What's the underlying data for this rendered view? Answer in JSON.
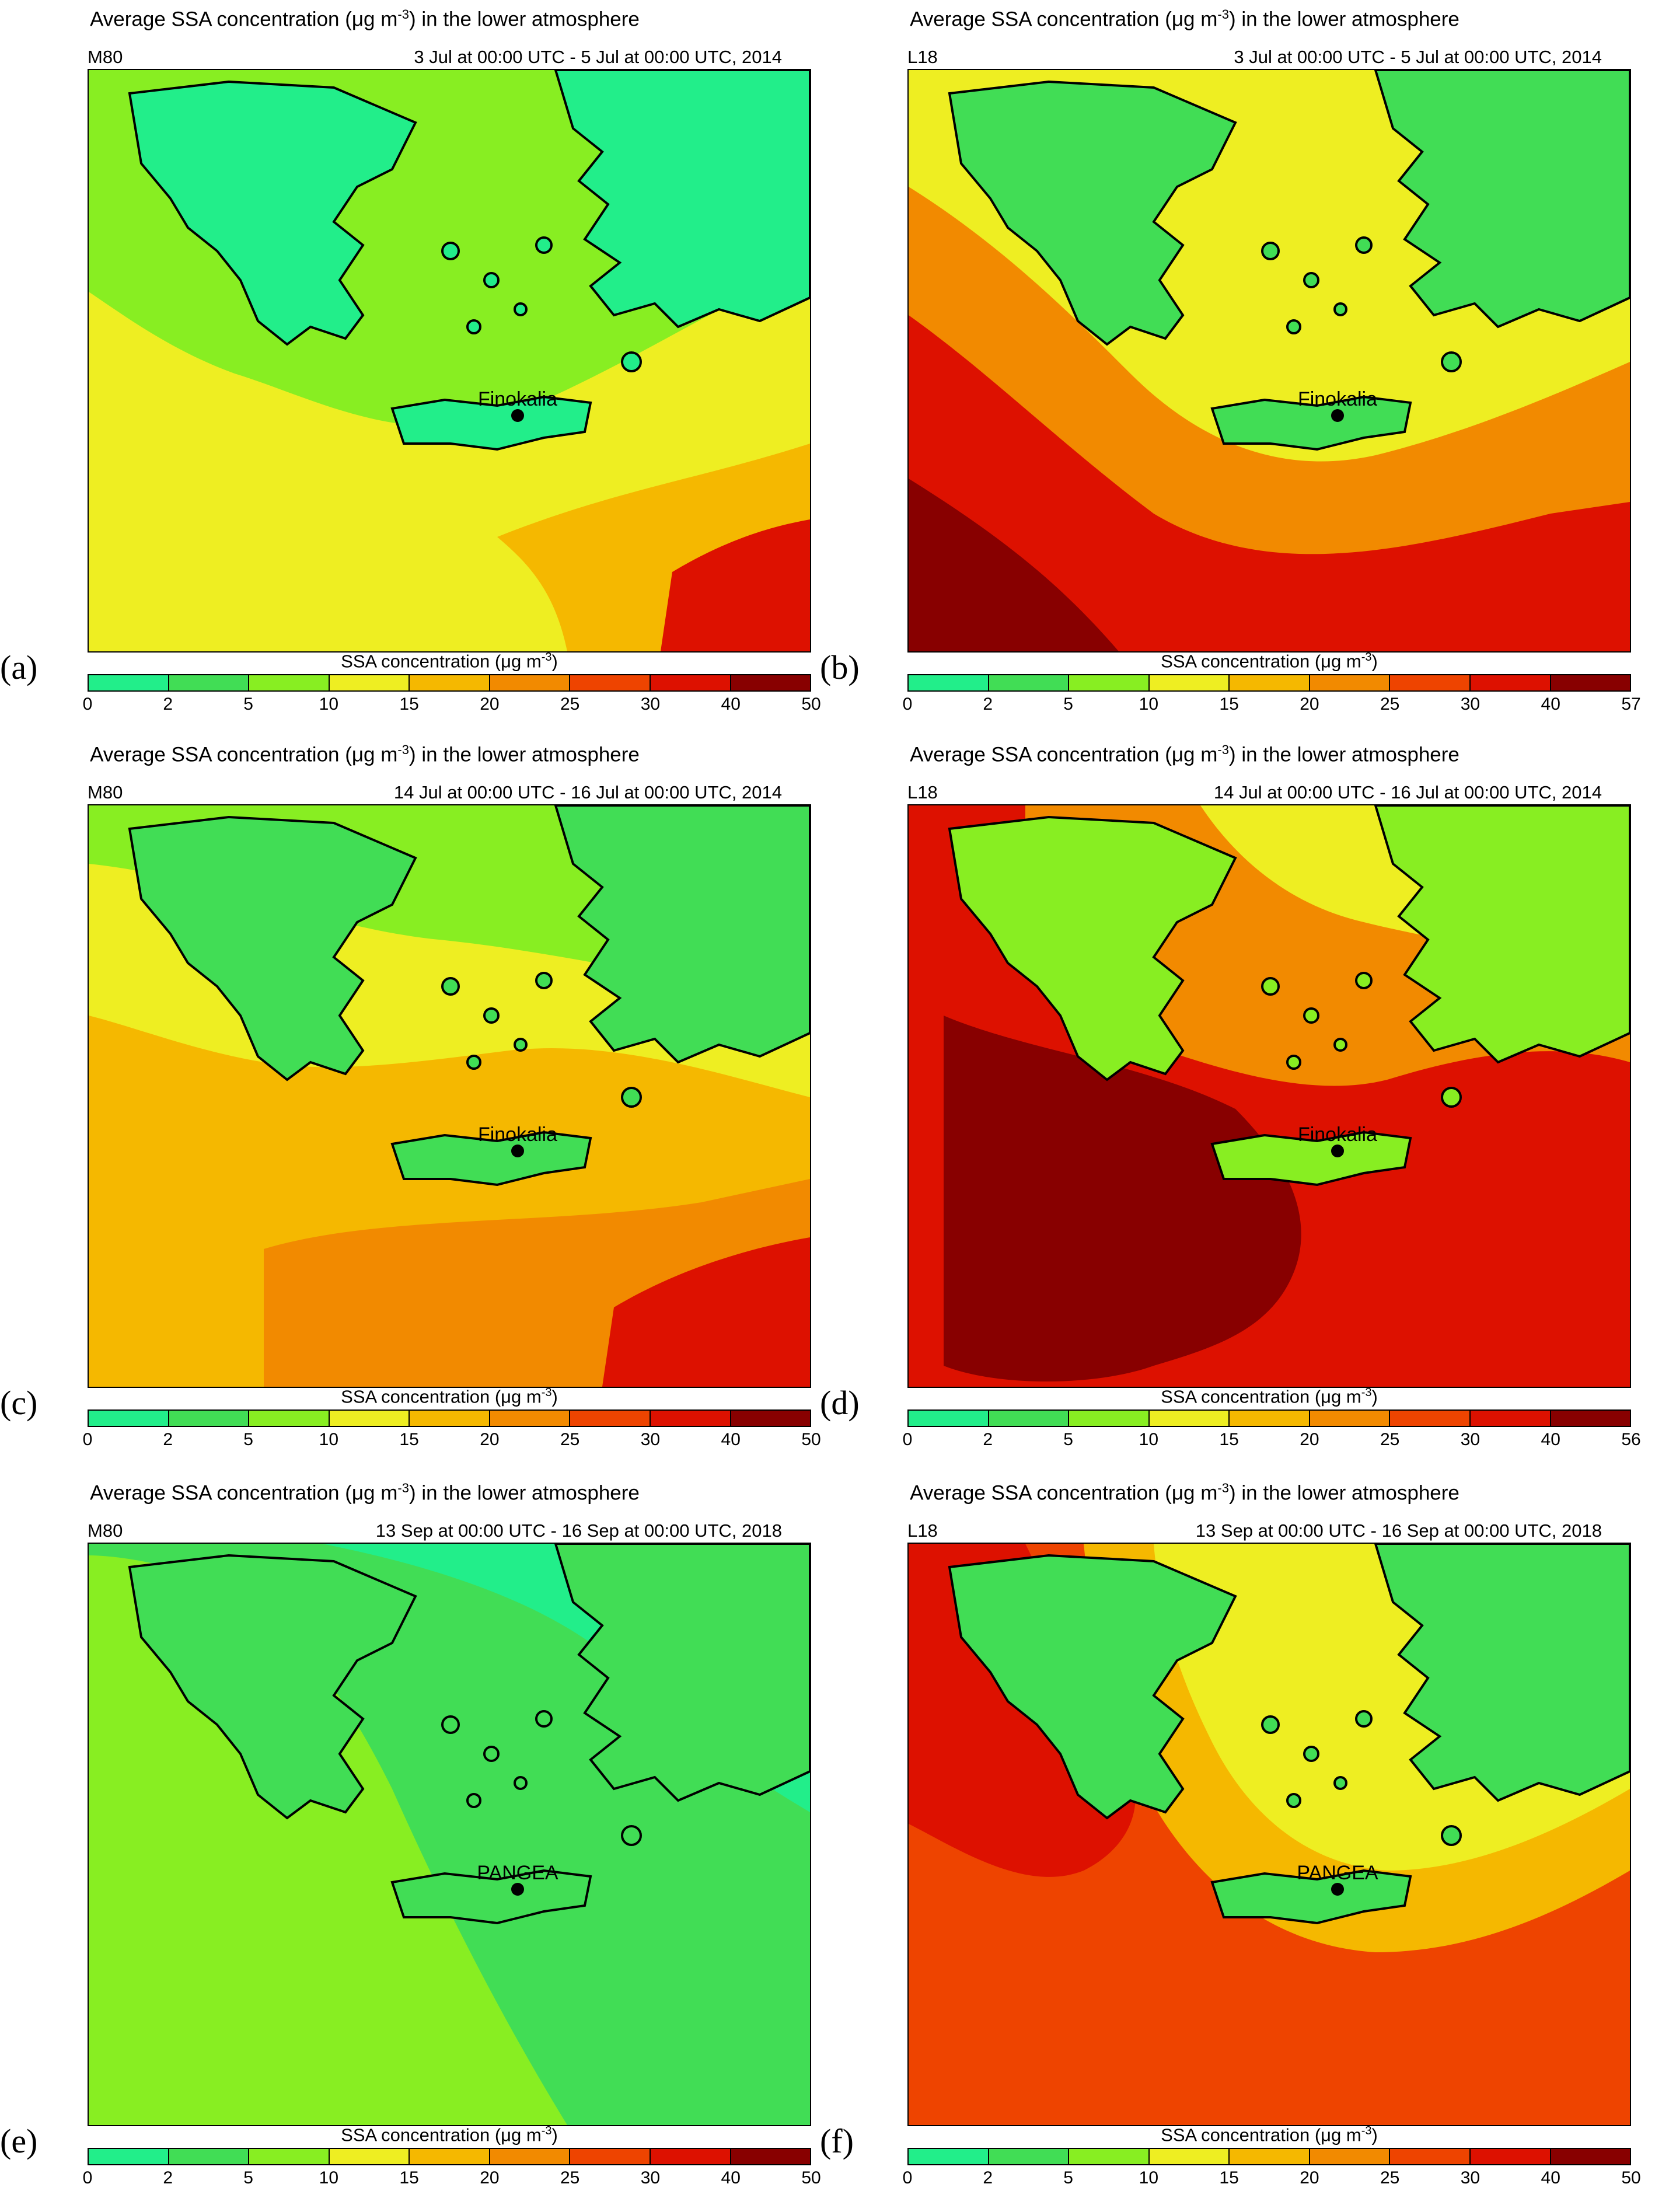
{
  "colorbar": {
    "title": "SSA concentration (μg m",
    "title_sup": "-3",
    "title_end": ")",
    "bins": [
      {
        "color": "#22ee8a"
      },
      {
        "color": "#41dd55"
      },
      {
        "color": "#88ee22"
      },
      {
        "color": "#eeee22"
      },
      {
        "color": "#f5b800"
      },
      {
        "color": "#f28a00"
      },
      {
        "color": "#ee4400"
      },
      {
        "color": "#dd1100"
      },
      {
        "color": "#880000"
      }
    ]
  },
  "panels": [
    {
      "letter": "(a)",
      "model": "M80",
      "title": "Average SSA concentration (μg m",
      "title_sup": "-3",
      "title_end": ") in the lower atmosphere",
      "period": "3 Jul at 00:00 UTC - 5 Jul at 00:00 UTC, 2014",
      "station": "Finokalia",
      "ticks": [
        "0",
        "2",
        "5",
        "10",
        "15",
        "20",
        "25",
        "30",
        "40",
        "50"
      ],
      "sea_color": "#eeee22",
      "land_color": "#22ee8a"
    },
    {
      "letter": "(b)",
      "model": "L18",
      "title": "Average SSA concentration (μg m",
      "title_sup": "-3",
      "title_end": ") in the lower atmosphere",
      "period": "3 Jul at 00:00 UTC - 5 Jul at 00:00 UTC, 2014",
      "station": "Finokalia",
      "ticks": [
        "0",
        "2",
        "5",
        "10",
        "15",
        "20",
        "25",
        "30",
        "40",
        "57"
      ],
      "sea_color": "#f28a00",
      "land_color": "#41dd55"
    },
    {
      "letter": "(c)",
      "model": "M80",
      "title": "Average SSA concentration (μg m",
      "title_sup": "-3",
      "title_end": ") in the lower atmosphere",
      "period": "14 Jul at 00:00 UTC - 16 Jul at 00:00 UTC, 2014",
      "station": "Finokalia",
      "ticks": [
        "0",
        "2",
        "5",
        "10",
        "15",
        "20",
        "25",
        "30",
        "40",
        "50"
      ],
      "sea_color": "#f5b800",
      "land_color": "#41dd55"
    },
    {
      "letter": "(d)",
      "model": "L18",
      "title": "Average SSA concentration (μg m",
      "title_sup": "-3",
      "title_end": ") in the lower atmosphere",
      "period": "14 Jul at 00:00 UTC - 16 Jul at 00:00 UTC, 2014",
      "station": "Finokalia",
      "ticks": [
        "0",
        "2",
        "5",
        "10",
        "15",
        "20",
        "25",
        "30",
        "40",
        "56"
      ],
      "sea_color": "#dd1100",
      "land_color": "#88ee22"
    },
    {
      "letter": "(e)",
      "model": "M80",
      "title": "Average SSA concentration (μg m",
      "title_sup": "-3",
      "title_end": ") in the lower atmosphere",
      "period": "13 Sep at 00:00 UTC - 16 Sep at 00:00 UTC, 2018",
      "station": "PANGEA",
      "ticks": [
        "0",
        "2",
        "5",
        "10",
        "15",
        "20",
        "25",
        "30",
        "40",
        "50"
      ],
      "sea_color": "#88ee22",
      "land_color": "#41dd55"
    },
    {
      "letter": "(f)",
      "model": "L18",
      "title": "Average SSA concentration (μg m",
      "title_sup": "-3",
      "title_end": ") in the lower atmosphere",
      "period": "13 Sep at 00:00 UTC - 16 Sep at 00:00 UTC, 2018",
      "station": "PANGEA",
      "ticks": [
        "0",
        "2",
        "5",
        "10",
        "15",
        "20",
        "25",
        "30",
        "40",
        "50"
      ],
      "sea_color": "#ee4400",
      "land_color": "#41dd55"
    }
  ]
}
